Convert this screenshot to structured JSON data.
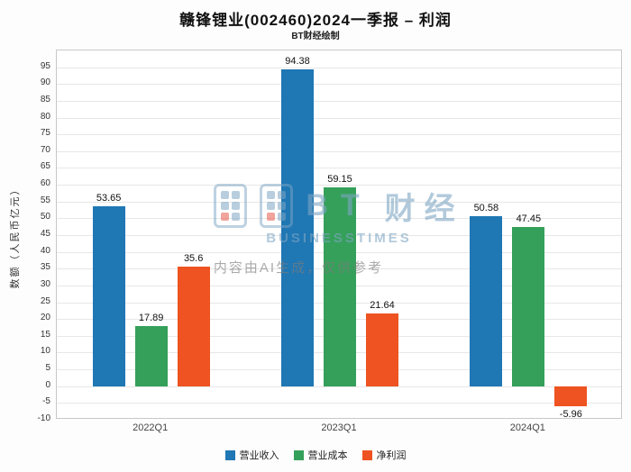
{
  "title": "赣锋锂业(002460)2024一季报 – 利润",
  "subtitle": "BT财经绘制",
  "watermark": {
    "brand_bt": "BT",
    "brand_cn": "财经",
    "brand_en": "BUSINESSTIMES",
    "ai_note": "内容由AI生成，仅供参考"
  },
  "chart_data": {
    "type": "bar",
    "title": "赣锋锂业(002460)2024一季报 – 利润",
    "categories": [
      "2022Q1",
      "2023Q1",
      "2024Q1"
    ],
    "series": [
      {
        "name": "营业收入",
        "color": "#1f77b4",
        "values": [
          53.65,
          94.38,
          50.58
        ]
      },
      {
        "name": "营业成本",
        "color": "#35a05a",
        "values": [
          17.89,
          59.15,
          47.45
        ]
      },
      {
        "name": "净利润",
        "color": "#ee5321",
        "values": [
          35.6,
          21.64,
          -5.96
        ]
      }
    ],
    "xlabel": "",
    "ylabel": "数额（人民币亿元）",
    "ylim": [
      -10,
      100
    ],
    "ytick_step": 5,
    "grid": true,
    "legend_position": "bottom"
  }
}
